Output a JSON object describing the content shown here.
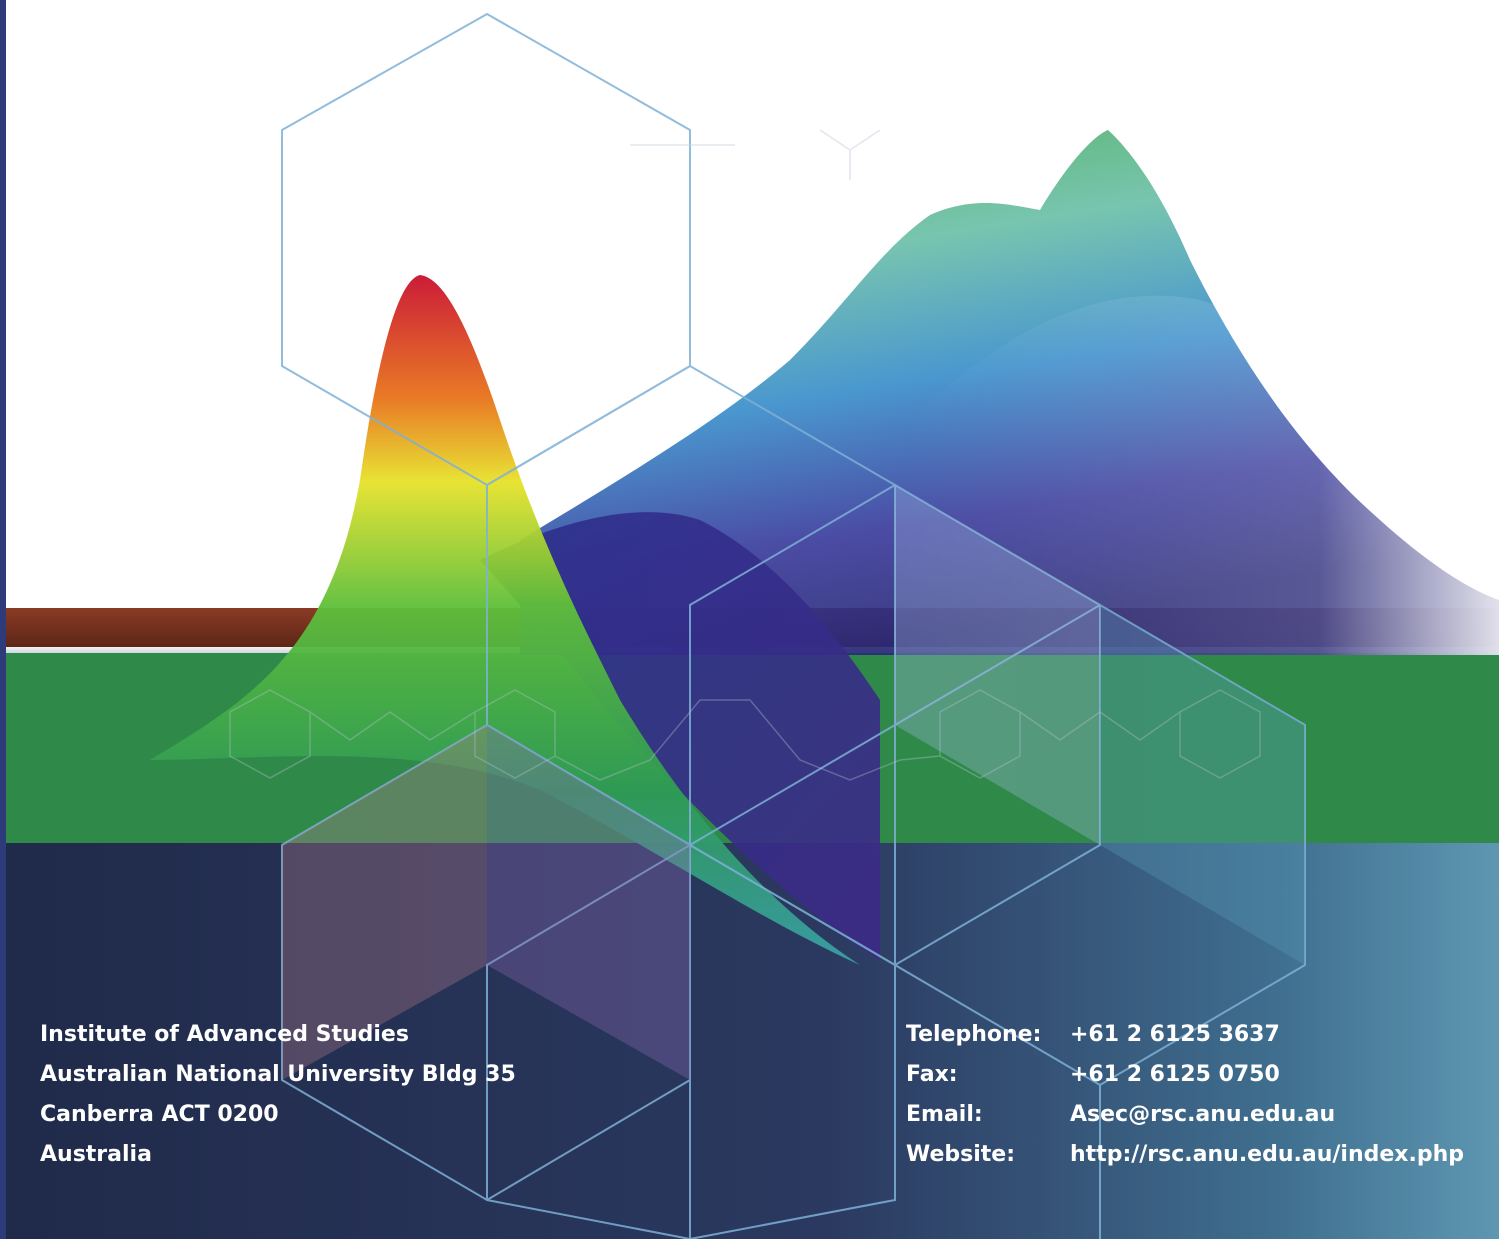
{
  "address": {
    "lines": [
      "Institute of Advanced Studies",
      "Australian National University Bldg 35",
      "Canberra  ACT  0200",
      "Australia"
    ]
  },
  "contacts": [
    {
      "label": "Telephone:",
      "value": "+61 2 6125 3637"
    },
    {
      "label": "Fax:",
      "value": "+61 2 6125 0750"
    },
    {
      "label": "Email:",
      "value": "Asec@rsc.anu.edu.au"
    },
    {
      "label": "Website:",
      "value": "http://rsc.anu.edu.au/index.php"
    }
  ],
  "colors": {
    "accent_navy": "#2e3b7a",
    "band_brown": "#6e2d1c",
    "band_green": "#2f8a4a",
    "band_dark": "#202a4a",
    "hexagon_stroke": "#7fb0d6"
  }
}
